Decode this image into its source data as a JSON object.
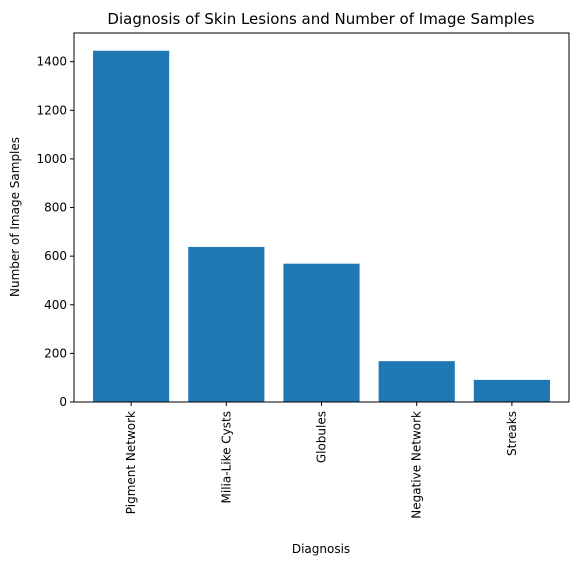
{
  "chart_data": {
    "type": "bar",
    "title": "Diagnosis of Skin Lesions and Number of Image Samples",
    "xlabel": "Diagnosis",
    "ylabel": "Number of Image Samples",
    "categories": [
      "Pigment Network",
      "Milia-Like Cysts",
      "Globules",
      "Negative Network",
      "Streaks"
    ],
    "values": [
      1445,
      638,
      569,
      168,
      91
    ],
    "ylim": [
      0,
      1518
    ],
    "yticks": [
      0,
      200,
      400,
      600,
      800,
      1000,
      1200,
      1400
    ],
    "grid": false,
    "legend": "none",
    "bar_color": "#1f77b4"
  }
}
